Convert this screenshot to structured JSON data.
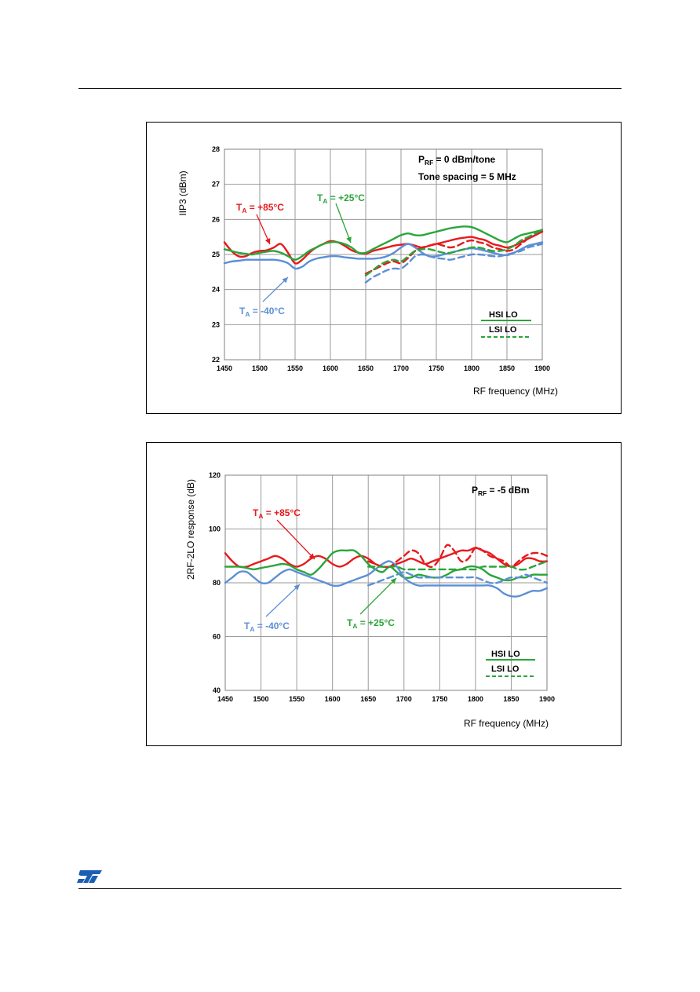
{
  "page": {
    "logo_name": "st-logo"
  },
  "chart_data": [
    {
      "type": "line",
      "ylabel": "IIP3 (dBm)",
      "xlabel": "RF frequency (MHz)",
      "xlim": [
        1450,
        1900
      ],
      "ylim": [
        22,
        28
      ],
      "xticks": [
        1450,
        1500,
        1550,
        1600,
        1650,
        1700,
        1750,
        1800,
        1850,
        1900
      ],
      "yticks": [
        22,
        23,
        24,
        25,
        26,
        27,
        28
      ],
      "grid": true,
      "info_lines": [
        {
          "main": "P",
          "sub": "RF",
          "rest": " = 0 dBm/tone"
        },
        {
          "main": "Tone spacing = 5 MHz",
          "sub": "",
          "rest": ""
        }
      ],
      "legend": {
        "hsi": "HSI LO",
        "lsi": "LSI LO",
        "placement": "bottom-right"
      },
      "colors": {
        "red": "#e8191c",
        "green": "#2aa53a",
        "blue": "#5b8fd6"
      },
      "annotations": [
        {
          "main": "T",
          "sub": "A",
          "rest": " = +85°C",
          "color": "#e8191c"
        },
        {
          "main": "T",
          "sub": "A",
          "rest": " = +25°C",
          "color": "#2aa53a"
        },
        {
          "main": "T",
          "sub": "A",
          "rest": " = -40°C",
          "color": "#5b8fd6"
        }
      ],
      "series": [
        {
          "color": "#e8191c",
          "dash": false,
          "x": [
            1450,
            1460,
            1470,
            1480,
            1490,
            1500,
            1510,
            1520,
            1530,
            1540,
            1550,
            1560,
            1570,
            1580,
            1590,
            1600,
            1610,
            1620,
            1630,
            1640,
            1650,
            1660,
            1670,
            1680,
            1690,
            1700,
            1710,
            1720,
            1730,
            1740,
            1750,
            1760,
            1770,
            1780,
            1790,
            1800,
            1810,
            1820,
            1830,
            1840,
            1850,
            1860,
            1870,
            1880,
            1890,
            1900
          ],
          "y": [
            25.35,
            25.1,
            24.95,
            24.95,
            25.05,
            25.1,
            25.12,
            25.2,
            25.3,
            25.05,
            24.75,
            24.85,
            25.05,
            25.2,
            25.3,
            25.38,
            25.35,
            25.25,
            25.12,
            25.05,
            25.02,
            25.1,
            25.15,
            25.2,
            25.25,
            25.28,
            25.3,
            25.25,
            25.2,
            25.25,
            25.3,
            25.35,
            25.4,
            25.45,
            25.48,
            25.5,
            25.45,
            25.4,
            25.3,
            25.25,
            25.2,
            25.25,
            25.35,
            25.45,
            25.55,
            25.65
          ]
        },
        {
          "color": "#2aa53a",
          "dash": false,
          "x": [
            1450,
            1460,
            1470,
            1480,
            1490,
            1500,
            1510,
            1520,
            1530,
            1540,
            1550,
            1560,
            1570,
            1580,
            1590,
            1600,
            1610,
            1620,
            1630,
            1640,
            1650,
            1660,
            1670,
            1680,
            1690,
            1700,
            1710,
            1720,
            1730,
            1740,
            1750,
            1760,
            1770,
            1780,
            1790,
            1800,
            1810,
            1820,
            1830,
            1840,
            1850,
            1860,
            1870,
            1880,
            1890,
            1900
          ],
          "y": [
            25.15,
            25.1,
            25.05,
            25.02,
            25.0,
            25.05,
            25.08,
            25.1,
            25.05,
            24.95,
            24.85,
            24.95,
            25.1,
            25.2,
            25.3,
            25.35,
            25.35,
            25.3,
            25.2,
            25.05,
            25.05,
            25.15,
            25.25,
            25.35,
            25.45,
            25.55,
            25.6,
            25.55,
            25.55,
            25.6,
            25.65,
            25.7,
            25.75,
            25.78,
            25.8,
            25.78,
            25.7,
            25.6,
            25.5,
            25.4,
            25.35,
            25.45,
            25.55,
            25.6,
            25.65,
            25.7
          ]
        },
        {
          "color": "#5b8fd6",
          "dash": false,
          "x": [
            1450,
            1460,
            1470,
            1480,
            1490,
            1500,
            1510,
            1520,
            1530,
            1540,
            1550,
            1560,
            1570,
            1580,
            1590,
            1600,
            1610,
            1620,
            1630,
            1640,
            1650,
            1660,
            1670,
            1680,
            1690,
            1700,
            1710,
            1720,
            1730,
            1740,
            1750,
            1760,
            1770,
            1780,
            1790,
            1800,
            1810,
            1820,
            1830,
            1840,
            1850,
            1860,
            1870,
            1880,
            1890,
            1900
          ],
          "y": [
            24.75,
            24.8,
            24.82,
            24.85,
            24.85,
            24.85,
            24.85,
            24.85,
            24.82,
            24.75,
            24.6,
            24.65,
            24.8,
            24.88,
            24.92,
            24.95,
            24.95,
            24.92,
            24.9,
            24.88,
            24.88,
            24.88,
            24.9,
            24.95,
            25.05,
            25.2,
            25.3,
            25.2,
            25.05,
            24.95,
            24.95,
            25.0,
            25.05,
            25.1,
            25.15,
            25.18,
            25.15,
            25.1,
            25.05,
            25.0,
            24.98,
            25.05,
            25.15,
            25.25,
            25.3,
            25.35
          ]
        },
        {
          "color": "#e8191c",
          "dash": true,
          "x": [
            1650,
            1660,
            1670,
            1680,
            1690,
            1700,
            1710,
            1720,
            1730,
            1740,
            1750,
            1760,
            1770,
            1780,
            1790,
            1800,
            1810,
            1820,
            1830,
            1840,
            1850,
            1860,
            1870,
            1880,
            1890,
            1900
          ],
          "y": [
            24.45,
            24.55,
            24.65,
            24.75,
            24.8,
            24.75,
            24.9,
            25.1,
            25.2,
            25.25,
            25.3,
            25.25,
            25.2,
            25.25,
            25.35,
            25.4,
            25.35,
            25.3,
            25.2,
            25.15,
            25.1,
            25.15,
            25.3,
            25.45,
            25.55,
            25.65
          ]
        },
        {
          "color": "#2aa53a",
          "dash": true,
          "x": [
            1650,
            1660,
            1670,
            1680,
            1690,
            1700,
            1710,
            1720,
            1730,
            1740,
            1750,
            1760,
            1770,
            1780,
            1790,
            1800,
            1810,
            1820,
            1830,
            1840,
            1850,
            1860,
            1870,
            1880,
            1890,
            1900
          ],
          "y": [
            24.4,
            24.55,
            24.7,
            24.8,
            24.85,
            24.8,
            24.95,
            25.1,
            25.15,
            25.15,
            25.1,
            25.05,
            25.05,
            25.1,
            25.15,
            25.2,
            25.2,
            25.15,
            25.1,
            25.1,
            25.15,
            25.25,
            25.4,
            25.5,
            25.6,
            25.7
          ]
        },
        {
          "color": "#5b8fd6",
          "dash": true,
          "x": [
            1650,
            1660,
            1670,
            1680,
            1690,
            1700,
            1710,
            1720,
            1730,
            1740,
            1750,
            1760,
            1770,
            1780,
            1790,
            1800,
            1810,
            1820,
            1830,
            1840,
            1850,
            1860,
            1870,
            1880,
            1890,
            1900
          ],
          "y": [
            24.2,
            24.35,
            24.45,
            24.55,
            24.6,
            24.6,
            24.75,
            24.95,
            25.0,
            24.95,
            24.9,
            24.88,
            24.85,
            24.9,
            24.95,
            25.0,
            25.0,
            24.98,
            24.95,
            24.95,
            25.0,
            25.05,
            25.1,
            25.2,
            25.25,
            25.3
          ]
        }
      ]
    },
    {
      "type": "line",
      "ylabel": "2RF-2LO response (dB)",
      "xlabel": "RF frequency (MHz)",
      "xlim": [
        1450,
        1900
      ],
      "ylim": [
        40,
        120
      ],
      "xticks": [
        1450,
        1500,
        1550,
        1600,
        1650,
        1700,
        1750,
        1800,
        1850,
        1900
      ],
      "yticks": [
        40,
        60,
        80,
        100,
        120
      ],
      "grid": true,
      "info_lines": [
        {
          "main": "P",
          "sub": "RF",
          "rest": " = -5 dBm"
        }
      ],
      "legend": {
        "hsi": "HSI LO",
        "lsi": "LSI LO",
        "placement": "bottom-right"
      },
      "colors": {
        "red": "#e8191c",
        "green": "#2aa53a",
        "blue": "#5b8fd6"
      },
      "annotations": [
        {
          "main": "T",
          "sub": "A",
          "rest": " = +85°C",
          "color": "#e8191c"
        },
        {
          "main": "T",
          "sub": "A",
          "rest": " = -40°C",
          "color": "#5b8fd6"
        },
        {
          "main": "T",
          "sub": "A",
          "rest": " = +25°C",
          "color": "#2aa53a"
        }
      ],
      "series": [
        {
          "color": "#e8191c",
          "dash": false,
          "x": [
            1450,
            1460,
            1470,
            1480,
            1490,
            1500,
            1510,
            1520,
            1530,
            1540,
            1550,
            1560,
            1570,
            1580,
            1590,
            1600,
            1610,
            1620,
            1630,
            1640,
            1650,
            1660,
            1670,
            1680,
            1690,
            1700,
            1710,
            1720,
            1730,
            1740,
            1750,
            1760,
            1770,
            1780,
            1790,
            1800,
            1810,
            1820,
            1830,
            1840,
            1850,
            1860,
            1870,
            1880,
            1890,
            1900
          ],
          "y": [
            91,
            88,
            86,
            86,
            87,
            88,
            89,
            90,
            89,
            87,
            86,
            87,
            89,
            90,
            89,
            87,
            86,
            87,
            89,
            90,
            89,
            87,
            86,
            86,
            87,
            88,
            89,
            88,
            87,
            88,
            89,
            90,
            91,
            92,
            92,
            93,
            92,
            91,
            89,
            87,
            86,
            87,
            89,
            89,
            88,
            88
          ]
        },
        {
          "color": "#2aa53a",
          "dash": false,
          "x": [
            1450,
            1460,
            1470,
            1480,
            1490,
            1500,
            1510,
            1520,
            1530,
            1540,
            1550,
            1560,
            1570,
            1580,
            1590,
            1600,
            1610,
            1620,
            1630,
            1640,
            1650,
            1660,
            1670,
            1680,
            1690,
            1700,
            1710,
            1720,
            1730,
            1740,
            1750,
            1760,
            1770,
            1780,
            1790,
            1800,
            1810,
            1820,
            1830,
            1840,
            1850,
            1860,
            1870,
            1880,
            1890,
            1900
          ],
          "y": [
            86,
            86,
            86,
            85.5,
            85,
            85.5,
            86,
            86.5,
            87,
            86.5,
            85,
            84,
            83,
            85,
            88,
            91,
            92,
            92,
            92,
            90,
            87,
            85,
            84,
            86,
            84,
            82,
            82,
            83,
            82.5,
            82,
            82,
            83,
            84.5,
            85,
            86,
            86,
            85,
            83,
            82,
            81,
            81,
            82,
            82,
            83,
            83,
            83
          ]
        },
        {
          "color": "#5b8fd6",
          "dash": false,
          "x": [
            1450,
            1460,
            1470,
            1480,
            1490,
            1500,
            1510,
            1520,
            1530,
            1540,
            1550,
            1560,
            1570,
            1580,
            1590,
            1600,
            1610,
            1620,
            1630,
            1640,
            1650,
            1660,
            1670,
            1680,
            1690,
            1700,
            1710,
            1720,
            1730,
            1740,
            1750,
            1760,
            1770,
            1780,
            1790,
            1800,
            1810,
            1820,
            1830,
            1840,
            1850,
            1860,
            1870,
            1880,
            1890,
            1900
          ],
          "y": [
            80,
            82,
            84,
            84,
            82,
            80,
            80,
            82,
            84,
            85,
            84,
            83,
            82,
            81,
            80,
            79,
            79,
            80,
            81,
            82,
            83,
            85,
            87,
            88,
            86,
            82,
            80,
            79,
            79,
            79,
            79,
            79,
            79,
            79,
            79,
            79,
            79,
            79,
            78,
            76,
            75,
            75,
            76,
            77,
            77,
            78
          ]
        },
        {
          "color": "#e8191c",
          "dash": true,
          "x": [
            1650,
            1660,
            1670,
            1680,
            1690,
            1700,
            1710,
            1720,
            1730,
            1740,
            1750,
            1760,
            1770,
            1780,
            1790,
            1800,
            1810,
            1820,
            1830,
            1840,
            1850,
            1860,
            1870,
            1880,
            1890,
            1900
          ],
          "y": [
            88,
            87,
            86,
            86,
            88,
            90,
            92,
            91,
            87,
            86,
            89,
            94,
            92,
            88,
            89,
            93,
            92,
            90,
            89,
            88,
            86,
            88,
            90,
            91,
            91,
            90
          ]
        },
        {
          "color": "#2aa53a",
          "dash": true,
          "x": [
            1650,
            1660,
            1670,
            1680,
            1690,
            1700,
            1710,
            1720,
            1730,
            1740,
            1750,
            1760,
            1770,
            1780,
            1790,
            1800,
            1810,
            1820,
            1830,
            1840,
            1850,
            1860,
            1870,
            1880,
            1890,
            1900
          ],
          "y": [
            86,
            86,
            86,
            86,
            86,
            85,
            85,
            85,
            85,
            85,
            85,
            85,
            85,
            85,
            85,
            85,
            86,
            86,
            86,
            86,
            86,
            85,
            85,
            86,
            87,
            88
          ]
        },
        {
          "color": "#5b8fd6",
          "dash": true,
          "x": [
            1650,
            1660,
            1670,
            1680,
            1690,
            1700,
            1710,
            1720,
            1730,
            1740,
            1750,
            1760,
            1770,
            1780,
            1790,
            1800,
            1810,
            1820,
            1830,
            1840,
            1850,
            1860,
            1870,
            1880,
            1890,
            1900
          ],
          "y": [
            79,
            80,
            81,
            82,
            83,
            84,
            83,
            82,
            82,
            82,
            82,
            82,
            82,
            82,
            82,
            82,
            81,
            80,
            80,
            81,
            82,
            82,
            83,
            82,
            81,
            80
          ]
        }
      ]
    }
  ]
}
